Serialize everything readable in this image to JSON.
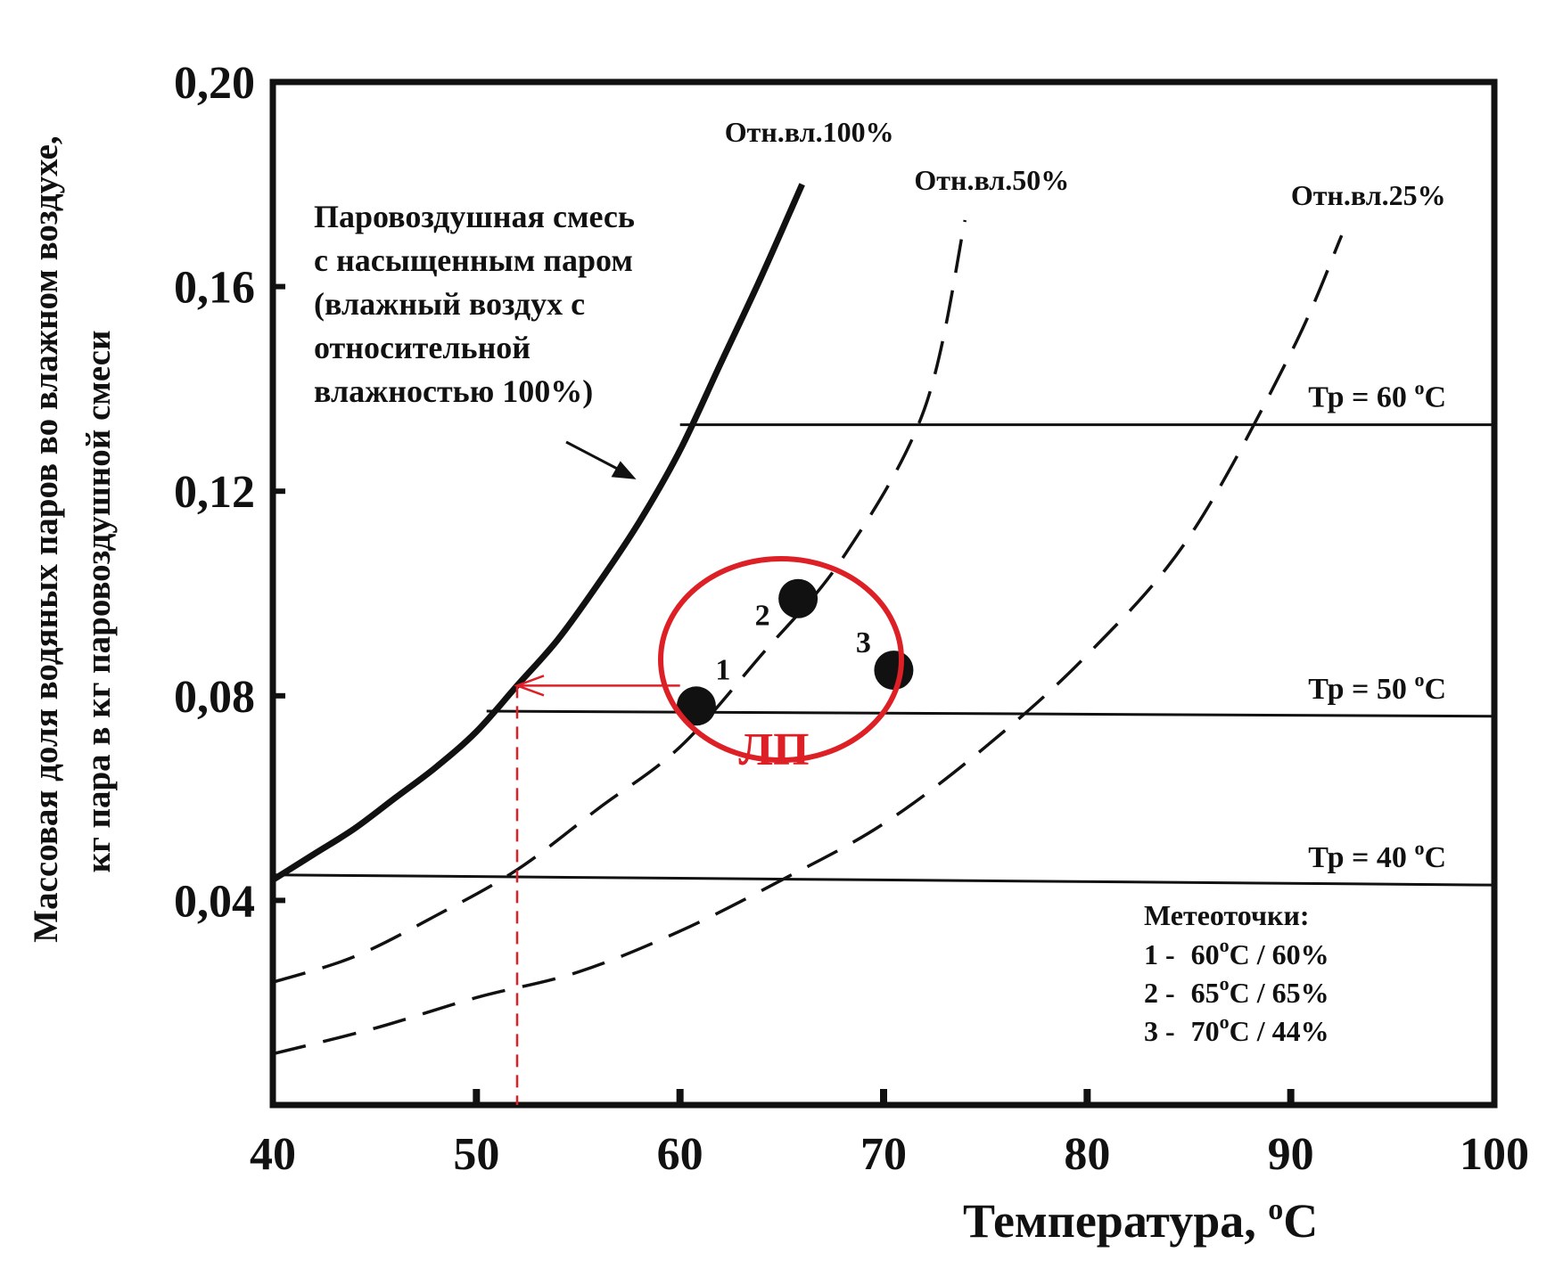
{
  "chart_data": {
    "type": "line",
    "xlabel": "Температура, ",
    "xlabel_sup": "o",
    "xlabel_unit": "C",
    "ylabel_line1": "Массовая доля водяных паров во влажном воздухе,",
    "ylabel_line2": "кг пара в кг паровоздушной смеси",
    "xlim": [
      40,
      100
    ],
    "ylim": [
      0,
      0.2
    ],
    "x_ticks": [
      "40",
      "50",
      "60",
      "70",
      "80",
      "90",
      "100"
    ],
    "x_tick_values": [
      40,
      50,
      60,
      70,
      80,
      90,
      100
    ],
    "y_ticks": [
      "0,04",
      "0,08",
      "0,12",
      "0,16",
      "0,20"
    ],
    "y_tick_values": [
      0.04,
      0.08,
      0.12,
      0.16,
      0.2
    ],
    "series": [
      {
        "name": "Отн.вл.100%",
        "style": "solid-thick",
        "x": [
          40,
          42,
          44,
          46,
          48,
          50,
          52,
          54,
          56,
          58,
          60,
          62,
          64,
          66
        ],
        "y": [
          0.044,
          0.049,
          0.054,
          0.06,
          0.066,
          0.073,
          0.082,
          0.091,
          0.102,
          0.114,
          0.128,
          0.145,
          0.162,
          0.18
        ]
      },
      {
        "name": "Отн.вл.50%",
        "style": "dashed",
        "x": [
          40,
          44,
          48,
          52,
          56,
          60,
          64,
          68,
          72,
          74
        ],
        "y": [
          0.024,
          0.029,
          0.037,
          0.046,
          0.058,
          0.07,
          0.088,
          0.107,
          0.136,
          0.173
        ]
      },
      {
        "name": "Отн.вл.25%",
        "style": "dashed",
        "x": [
          40,
          45,
          50,
          55,
          60,
          65,
          70,
          75,
          80,
          85,
          90,
          92.5
        ],
        "y": [
          0.01,
          0.015,
          0.021,
          0.026,
          0.034,
          0.044,
          0.055,
          0.07,
          0.088,
          0.111,
          0.147,
          0.17
        ]
      }
    ],
    "dew_point_lines": [
      {
        "label": "Тр = 60",
        "sup": "o",
        "unit": "C",
        "x_start": 60,
        "y_start": 0.133,
        "x_end": 100,
        "y_end": 0.133
      },
      {
        "label": "Тр = 50",
        "sup": "o",
        "unit": "C",
        "x_start": 50.5,
        "y_start": 0.077,
        "x_end": 100,
        "y_end": 0.076
      },
      {
        "label": "Тр = 40",
        "sup": "o",
        "unit": "C",
        "x_start": 40,
        "y_start": 0.045,
        "x_end": 100,
        "y_end": 0.043
      }
    ],
    "points": [
      {
        "label": "1",
        "x": 60.8,
        "y": 0.078
      },
      {
        "label": "2",
        "x": 65.8,
        "y": 0.099
      },
      {
        "label": "3",
        "x": 70.5,
        "y": 0.085
      }
    ],
    "annotation": {
      "line1": "Паровоздушная смесь",
      "line2": "с насыщенным паром",
      "line3": "(влажный воздух с",
      "line4": "относительной",
      "line5": "влажностью 100%)"
    },
    "region_label": "ЛП",
    "arrow": {
      "from_x": 60,
      "from_y": 0.082,
      "to_x": 52,
      "to_y": 0.082,
      "drop_x": 52
    },
    "legend": {
      "title": "Метеоточки:",
      "items": [
        {
          "num": "1 - ",
          "temp": "60",
          "sup": "o",
          "rest": "C / 60%"
        },
        {
          "num": "2 - ",
          "temp": "65",
          "sup": "o",
          "rest": "C / 65%"
        },
        {
          "num": "3 - ",
          "temp": "70",
          "sup": "o",
          "rest": "C / 44%"
        }
      ],
      "placement": "bottom-right"
    },
    "grid": false,
    "colors": {
      "ink": "#111111",
      "accent": "#dd1f26"
    }
  }
}
